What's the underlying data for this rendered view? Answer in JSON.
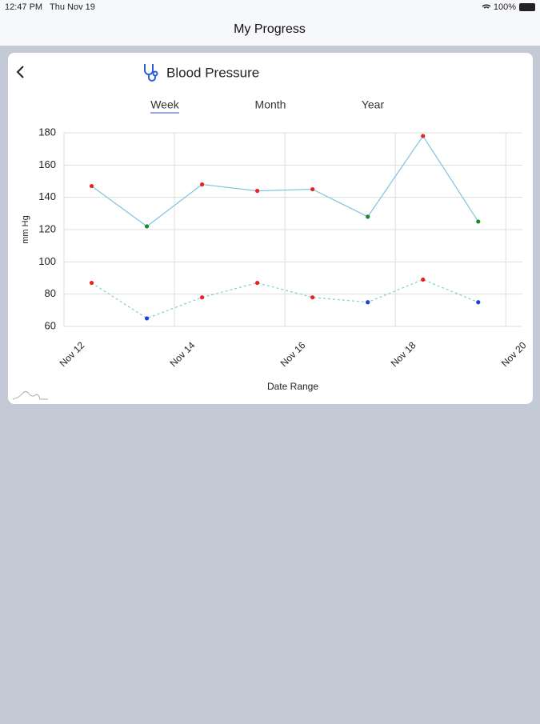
{
  "status_bar": {
    "time": "12:47 PM",
    "date": "Thu Nov 19",
    "battery": "100%"
  },
  "nav": {
    "title": "My Progress"
  },
  "card": {
    "title": "Blood Pressure",
    "tabs": [
      "Week",
      "Month",
      "Year"
    ]
  },
  "chart_data": {
    "type": "line",
    "y_label": "mm Hg",
    "x_label": "Date Range",
    "x": [
      12.5,
      13.5,
      14.5,
      15.5,
      16.5,
      17.5,
      18.5,
      19.5
    ],
    "series": [
      {
        "color": "#7cc3e0",
        "dashed": false,
        "values": [
          147,
          122,
          148,
          144,
          145,
          128,
          178,
          125
        ],
        "point_colors": [
          "#e8231e",
          "#1a8a2a",
          "#e8231e",
          "#e8231e",
          "#e8231e",
          "#1a8a2a",
          "#e8231e",
          "#1a8a2a"
        ]
      },
      {
        "color": "#7fcfc8",
        "dashed": true,
        "values": [
          87,
          65,
          78,
          87,
          78,
          75,
          89,
          75
        ],
        "point_colors": [
          "#e8231e",
          "#1f3ee0",
          "#e8231e",
          "#e8231e",
          "#e8231e",
          "#1f3ee0",
          "#e8231e",
          "#1f3ee0"
        ]
      }
    ],
    "xlim": [
      12,
      20.3
    ],
    "xticks": [
      {
        "value": 12,
        "label": "Nov 12"
      },
      {
        "value": 14,
        "label": "Nov 14"
      },
      {
        "value": 16,
        "label": "Nov 16"
      },
      {
        "value": 18,
        "label": "Nov 18"
      },
      {
        "value": 20,
        "label": "Nov 20"
      }
    ],
    "ylim": [
      60,
      180
    ],
    "yticks": [
      60,
      80,
      100,
      120,
      140,
      160,
      180
    ],
    "grid": true
  }
}
